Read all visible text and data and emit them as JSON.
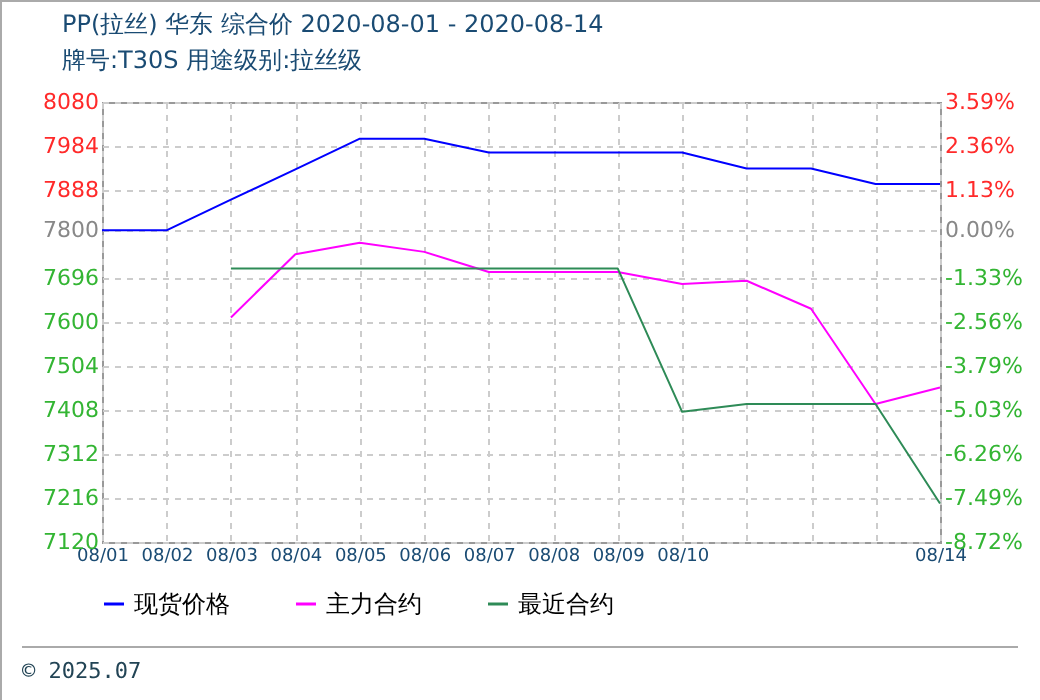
{
  "chart_data": {
    "type": "line",
    "title": "PP(拉丝) 华东 综合价 2020-08-01 - 2020-08-14",
    "subtitle": "牌号:T30S 用途级别:拉丝级",
    "categories": [
      "08/01",
      "08/02",
      "08/03",
      "08/04",
      "08/05",
      "08/06",
      "08/07",
      "08/08",
      "08/09",
      "08/10",
      null,
      null,
      null,
      "08/14"
    ],
    "series": [
      {
        "name": "现货价格",
        "color": "#0000ff",
        "values": [
          7800,
          7800,
          7867,
          7933,
          8000,
          8000,
          7970,
          7970,
          7970,
          7970,
          7935,
          7935,
          7901,
          7901
        ]
      },
      {
        "name": "主力合约",
        "color": "#ff00ff",
        "values": [
          null,
          null,
          7610,
          7748,
          7773,
          7753,
          7709,
          7709,
          7709,
          7683,
          7690,
          7629,
          7421,
          7457
        ]
      },
      {
        "name": "最近合约",
        "color": "#2e8b57",
        "values": [
          null,
          null,
          7717,
          7717,
          7717,
          7717,
          7717,
          7717,
          7717,
          7404,
          7421,
          7421,
          7421,
          7204
        ]
      }
    ],
    "ylim": [
      7120,
      8080
    ],
    "yticks": [
      7120,
      7216,
      7312,
      7408,
      7504,
      7600,
      7696,
      7800,
      7888,
      7984,
      8080
    ],
    "y2lim": [
      -8.72,
      3.59
    ],
    "y2ticks": [
      {
        "value": -8.72,
        "label": "-8.72%"
      },
      {
        "value": -7.49,
        "label": "-7.49%"
      },
      {
        "value": -6.26,
        "label": "-6.26%"
      },
      {
        "value": -5.03,
        "label": "-5.03%"
      },
      {
        "value": -3.79,
        "label": "-3.79%"
      },
      {
        "value": -2.56,
        "label": "-2.56%"
      },
      {
        "value": -1.33,
        "label": "-1.33%"
      },
      {
        "value": 0,
        "label": "0.00%"
      },
      {
        "value": 1.13,
        "label": "1.13%"
      },
      {
        "value": 2.36,
        "label": "2.36%"
      },
      {
        "value": 3.59,
        "label": "3.59%"
      }
    ],
    "grid": true,
    "legend": "bottom",
    "marker": "none",
    "line_style": "solid",
    "annotations": [
      "© 2025.07"
    ]
  }
}
